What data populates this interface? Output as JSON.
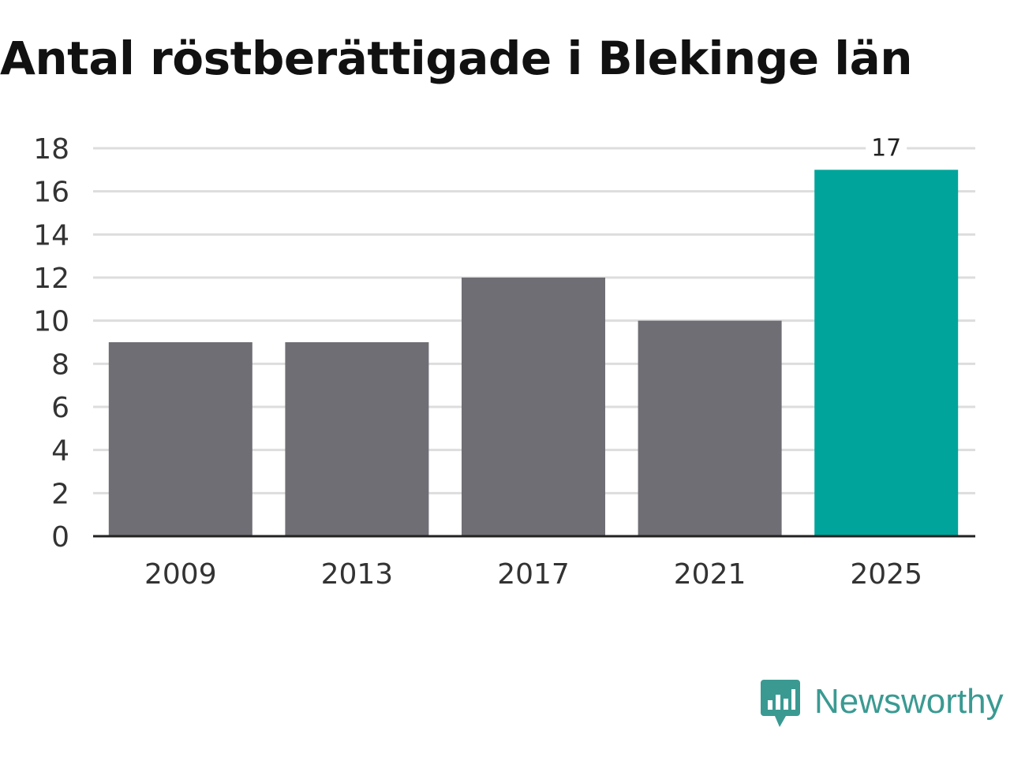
{
  "title": "Antal röstberättigade i Blekinge län",
  "brand": {
    "name": "Newsworthy",
    "icon": "newsworthy-logo-icon",
    "color": "#3a9a92"
  },
  "chart_data": {
    "type": "bar",
    "title": "Antal röstberättigade i Blekinge län",
    "xlabel": "",
    "ylabel": "",
    "categories": [
      "2009",
      "2013",
      "2017",
      "2021",
      "2025"
    ],
    "values": [
      9,
      9,
      12,
      10,
      17
    ],
    "data_labels": [
      "",
      "",
      "",
      "",
      "17"
    ],
    "ylim": [
      0,
      18
    ],
    "yticks": [
      "0",
      "2",
      "4",
      "6",
      "8",
      "10",
      "12",
      "14",
      "16",
      "18"
    ],
    "grid": true,
    "legend": "none",
    "colors": {
      "default": "#6f6e74",
      "highlight": "#00a49a",
      "grid": "#dddddd",
      "axis": "#222222",
      "text": "#333333"
    },
    "highlight_index": 4
  }
}
